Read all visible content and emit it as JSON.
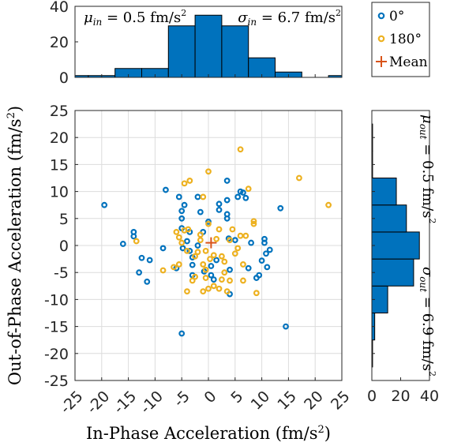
{
  "chart_data": [
    {
      "id": "scatter",
      "type": "scatter",
      "xlabel": "In-Phase Acceleration (fm/s²)",
      "ylabel": "Out-of-Phase Acceleration (fm/s²)",
      "xlim": [
        -25,
        25
      ],
      "ylim": [
        -25,
        25
      ],
      "xticks": [
        "-25",
        "-20",
        "-15",
        "-10",
        "-5",
        "0",
        "5",
        "10",
        "15",
        "20",
        "25"
      ],
      "yticks": [
        "25",
        "20",
        "15",
        "10",
        "5",
        "0",
        "-5",
        "-10",
        "-15",
        "-20",
        "-25"
      ],
      "grid": true,
      "series": [
        {
          "name": "0°",
          "color": "#0072BD",
          "points": [
            [
              -19.5,
              7.5
            ],
            [
              -16.0,
              0.3
            ],
            [
              -14.0,
              2.5
            ],
            [
              -14.0,
              1.7
            ],
            [
              -13.0,
              -5.0
            ],
            [
              -12.5,
              -2.3
            ],
            [
              -11.5,
              -6.7
            ],
            [
              -11.0,
              -2.7
            ],
            [
              -8.5,
              -0.5
            ],
            [
              -8.0,
              10.3
            ],
            [
              -6.0,
              -4.2
            ],
            [
              -5.5,
              9.0
            ],
            [
              -5.0,
              6.4
            ],
            [
              -5.0,
              5.0
            ],
            [
              -5.0,
              3.2
            ],
            [
              -5.0,
              -16.3
            ],
            [
              -4.8,
              -0.5
            ],
            [
              -4.5,
              7.5
            ],
            [
              -4.0,
              0.8
            ],
            [
              -3.5,
              2.5
            ],
            [
              -3.5,
              -1.0
            ],
            [
              -3.0,
              -2.2
            ],
            [
              -3.0,
              -3.6
            ],
            [
              -3.0,
              -5.5
            ],
            [
              -2.0,
              0.0
            ],
            [
              -2.0,
              9.0
            ],
            [
              -1.5,
              6.2
            ],
            [
              -1.0,
              2.5
            ],
            [
              -0.8,
              -4.8
            ],
            [
              0.0,
              4.4
            ],
            [
              0.5,
              -3.8
            ],
            [
              0.5,
              -5.5
            ],
            [
              1.0,
              -6.3
            ],
            [
              1.5,
              -2.7
            ],
            [
              2.0,
              6.6
            ],
            [
              2.0,
              7.7
            ],
            [
              3.5,
              8.4
            ],
            [
              3.5,
              5.8
            ],
            [
              3.5,
              5.0
            ],
            [
              3.5,
              12.0
            ],
            [
              3.8,
              1.3
            ],
            [
              4.0,
              -4.5
            ],
            [
              4.0,
              -9.0
            ],
            [
              5.0,
              1.0
            ],
            [
              5.5,
              9.0
            ],
            [
              6.0,
              10.0
            ],
            [
              6.5,
              9.8
            ],
            [
              7.0,
              8.8
            ],
            [
              7.5,
              -4.2
            ],
            [
              8.0,
              0.5
            ],
            [
              9.0,
              -6.0
            ],
            [
              9.5,
              -5.5
            ],
            [
              10.0,
              -2.8
            ],
            [
              10.5,
              0.5
            ],
            [
              10.5,
              1.2
            ],
            [
              10.8,
              -1.5
            ],
            [
              11.0,
              -4.0
            ],
            [
              11.5,
              -0.8
            ],
            [
              13.5,
              6.9
            ],
            [
              14.5,
              -15.0
            ]
          ]
        },
        {
          "name": "180°",
          "color": "#EDB120",
          "points": [
            [
              -13.5,
              0.8
            ],
            [
              -8.5,
              -4.6
            ],
            [
              -6.5,
              -4.0
            ],
            [
              -6.0,
              2.5
            ],
            [
              -5.5,
              -3.5
            ],
            [
              -5.5,
              1.5
            ],
            [
              -5.0,
              0.5
            ],
            [
              -4.5,
              11.5
            ],
            [
              -4.5,
              2.8
            ],
            [
              -4.0,
              -8.5
            ],
            [
              -4.0,
              -1.0
            ],
            [
              -3.8,
              3.0
            ],
            [
              -3.5,
              12.0
            ],
            [
              -3.0,
              -6.5
            ],
            [
              -2.5,
              -5.8
            ],
            [
              -2.5,
              -2.0
            ],
            [
              -1.5,
              2.0
            ],
            [
              -1.5,
              1.0
            ],
            [
              -1.0,
              9.0
            ],
            [
              -1.0,
              -8.5
            ],
            [
              -1.0,
              -3.5
            ],
            [
              -0.5,
              -1.0
            ],
            [
              -0.5,
              -4.5
            ],
            [
              -0.5,
              -6.0
            ],
            [
              0.0,
              13.7
            ],
            [
              0.0,
              4.0
            ],
            [
              0.0,
              -8.0
            ],
            [
              0.3,
              -2.5
            ],
            [
              1.0,
              -1.8
            ],
            [
              1.0,
              -7.5
            ],
            [
              1.5,
              1.2
            ],
            [
              2.0,
              -8.0
            ],
            [
              2.0,
              3.0
            ],
            [
              2.5,
              -2.0
            ],
            [
              3.0,
              -3.0
            ],
            [
              3.0,
              -5.0
            ],
            [
              3.5,
              -8.5
            ],
            [
              4.0,
              -6.5
            ],
            [
              4.0,
              1.0
            ],
            [
              4.5,
              3.0
            ],
            [
              5.0,
              -1.5
            ],
            [
              5.5,
              -0.5
            ],
            [
              6.0,
              17.8
            ],
            [
              6.0,
              1.8
            ],
            [
              6.5,
              -3.5
            ],
            [
              6.5,
              -6.5
            ],
            [
              7.0,
              1.8
            ],
            [
              7.5,
              10.5
            ],
            [
              8.5,
              4.5
            ],
            [
              8.5,
              4.0
            ],
            [
              9.0,
              -8.8
            ],
            [
              17.0,
              12.5
            ],
            [
              22.5,
              7.5
            ],
            [
              2.5,
              -6.3
            ],
            [
              -2.0,
              -1.2
            ]
          ]
        }
      ],
      "mean": {
        "name": "Mean",
        "x": 0.5,
        "y": 0.5,
        "color": "#D95319"
      }
    },
    {
      "id": "top-histogram",
      "type": "bar",
      "ylim": [
        0,
        40
      ],
      "yticks": [
        "40",
        "20",
        "0"
      ],
      "bin_edges": [
        -27.5,
        -22.5,
        -17.5,
        -12.5,
        -7.5,
        -2.5,
        2.5,
        7.5,
        12.5,
        17.5,
        22.5,
        27.5
      ],
      "values": [
        1,
        1,
        5,
        5,
        29,
        35,
        29,
        11,
        3,
        0,
        1
      ],
      "annotation_left": "μ",
      "annotation_left_sub": "in",
      "annotation_left_value": " = 0.5 fm/s",
      "annotation_right": "σ",
      "annotation_right_sub": "in",
      "annotation_right_value": " = 6.7 fm/s",
      "superscript": "2"
    },
    {
      "id": "right-histogram",
      "type": "bar",
      "xlim": [
        0,
        40
      ],
      "xticks": [
        "0",
        "20",
        "40"
      ],
      "bin_edges": [
        -22.5,
        -17.5,
        -12.5,
        -7.5,
        -2.5,
        2.5,
        7.5,
        12.5,
        17.5,
        22.5
      ],
      "values": [
        0.5,
        2,
        11,
        29,
        33,
        24,
        17,
        0.5,
        0.5
      ],
      "annotation_top": "μ",
      "annotation_top_sub": "out",
      "annotation_top_value": " = 0.5 fm/s",
      "annotation_bottom": "σ",
      "annotation_bottom_sub": "out",
      "annotation_bottom_value": " = 6.9 fm/s",
      "superscript": "2"
    }
  ],
  "legend": {
    "items": [
      {
        "label": "0°",
        "color": "#0072BD",
        "marker": "circle"
      },
      {
        "label": "180°",
        "color": "#EDB120",
        "marker": "circle"
      },
      {
        "label": "Mean",
        "color": "#D95319",
        "marker": "plus"
      }
    ]
  },
  "colors": {
    "bar": "#0072BD",
    "bar_edge": "#000000",
    "grid": "#dcdcdc",
    "axis": "#262626"
  }
}
